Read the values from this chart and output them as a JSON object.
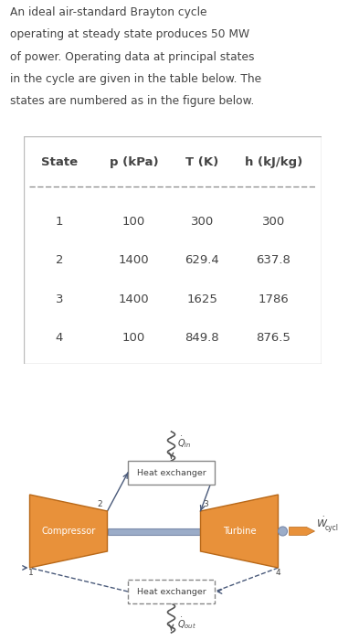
{
  "title_text": "An ideal air-standard Brayton cycle\noperating at steady state produces 50 MW\nof power. Operating data at principal states\nin the cycle are given in the table below. The\nstates are numbered as in the figure below.",
  "table_header": [
    "State",
    "p (kPa)",
    "T (K)",
    "h (kJ/kg)"
  ],
  "table_rows": [
    [
      "1",
      "100",
      "300",
      "300"
    ],
    [
      "2",
      "1400",
      "629.4",
      "637.8"
    ],
    [
      "3",
      "1400",
      "1625",
      "1786"
    ],
    [
      "4",
      "100",
      "849.8",
      "876.5"
    ]
  ],
  "bg_color": "#ffffff",
  "text_color": "#444444",
  "orange_color": "#E8913A",
  "orange_edge": "#b86818",
  "blue_arrow": "#4a5a7a",
  "shaft_color": "#9bacc8",
  "shaft_edge": "#7a8aaa"
}
